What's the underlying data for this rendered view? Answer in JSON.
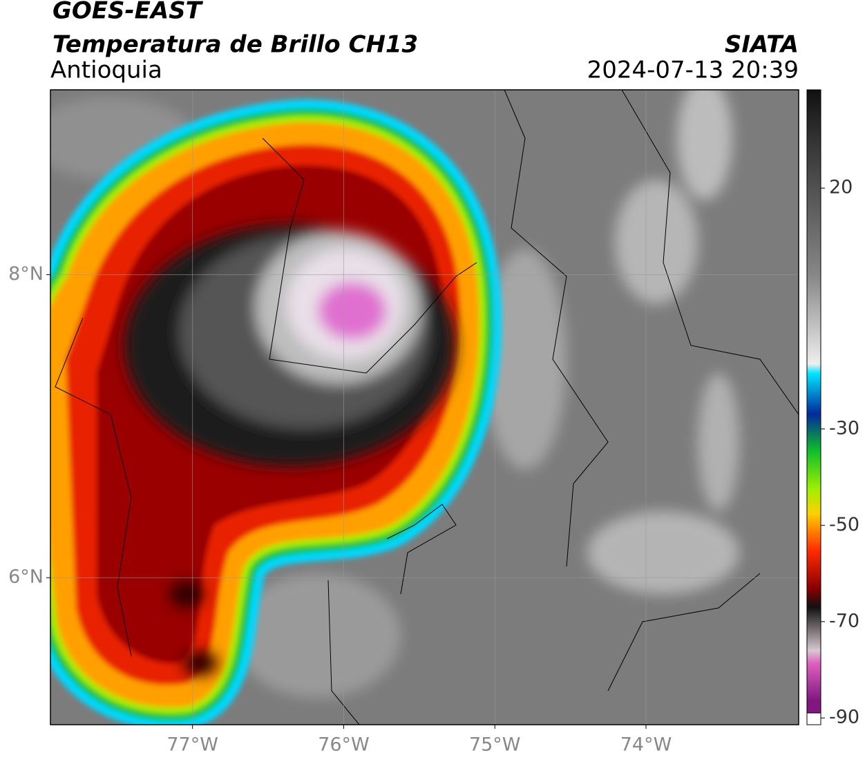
{
  "header": {
    "title": "GOES-EAST",
    "subtitle": "Temperatura de Brillo CH13",
    "region": "Antioquia",
    "source": "SIATA",
    "datetime": "2024-07-13 20:39"
  },
  "map": {
    "xlim": [
      -77.94,
      -72.99
    ],
    "ylim": [
      5.03,
      9.22
    ],
    "xticks": [
      {
        "value": -77,
        "label": "77°W"
      },
      {
        "value": -76,
        "label": "76°W"
      },
      {
        "value": -75,
        "label": "75°W"
      },
      {
        "value": -74,
        "label": "74°W"
      }
    ],
    "yticks": [
      {
        "value": 8,
        "label": "8°N"
      },
      {
        "value": 6,
        "label": "6°N"
      }
    ],
    "grid": true
  },
  "colorbar": {
    "lim": [
      -91.4,
      40.4
    ],
    "ticks": [
      20,
      -30,
      -50,
      -70,
      -90
    ]
  }
}
